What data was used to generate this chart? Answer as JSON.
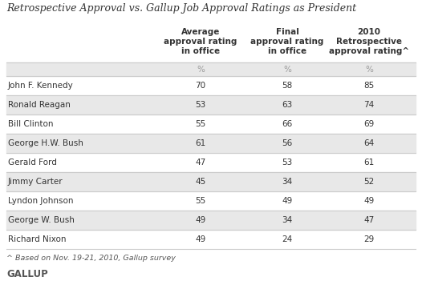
{
  "title": "Retrospective Approval vs. Gallup Job Approval Ratings as President",
  "col_headers": [
    "Average\napproval rating\nin office",
    "Final\napproval rating\nin office",
    "2010\nRetrospective\napproval rating^"
  ],
  "presidents": [
    "John F. Kennedy",
    "Ronald Reagan",
    "Bill Clinton",
    "George H.W. Bush",
    "Gerald Ford",
    "Jimmy Carter",
    "Lyndon Johnson",
    "George W. Bush",
    "Richard Nixon"
  ],
  "col1": [
    70,
    53,
    55,
    61,
    47,
    45,
    55,
    49,
    49
  ],
  "col2": [
    58,
    63,
    66,
    56,
    53,
    34,
    49,
    34,
    24
  ],
  "col3": [
    85,
    74,
    69,
    64,
    61,
    52,
    49,
    47,
    29
  ],
  "footnote": "^ Based on Nov. 19-21, 2010, Gallup survey",
  "gallup_label": "GALLUP",
  "bg_color": "#ffffff",
  "stripe_color": "#e8e8e8",
  "text_color": "#333333",
  "pct_color": "#999999",
  "footnote_color": "#555555",
  "gallup_color": "#555555",
  "line_color": "#cccccc",
  "title_fontsize": 9,
  "header_fontsize": 7.5,
  "data_fontsize": 7.5,
  "footnote_fontsize": 6.8,
  "gallup_fontsize": 8.5
}
